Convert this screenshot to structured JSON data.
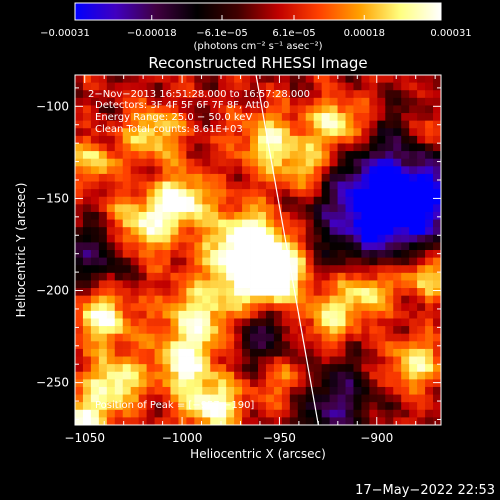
{
  "chart_data": {
    "type": "heatmap",
    "title": "Reconstructed RHESSI Image",
    "xlabel": "Heliocentric X (arcsec)",
    "ylabel": "Heliocentric Y (arcsec)",
    "xlim": [
      -1055,
      -867
    ],
    "ylim": [
      -273,
      -83
    ],
    "x_ticks": [
      -1050,
      -1000,
      -950,
      -900
    ],
    "x_tick_labels": [
      "−1050",
      "−1000",
      "−950",
      "−900"
    ],
    "y_ticks": [
      -100,
      -150,
      -200,
      -250
    ],
    "y_tick_labels": [
      "−100",
      "−150",
      "−200",
      "−250"
    ],
    "colorbar": {
      "min": -0.00031,
      "max": 0.00031,
      "ticks": [
        -0.00031,
        -0.00018,
        -6.1e-05,
        6.1e-05,
        0.00018,
        0.00031
      ],
      "tick_labels": [
        "−0.00031",
        "−0.00018",
        "−6.1e−05",
        "6.1e−05",
        "0.00018",
        "0.00031"
      ],
      "unit_text": "(photons cm⁻² s⁻¹ asec⁻²)",
      "colors": [
        "#0000ff",
        "#4000c0",
        "#400040",
        "#000000",
        "#400000",
        "#c00000",
        "#ff4000",
        "#ffa000",
        "#ffff80",
        "#ffffff"
      ]
    },
    "annotations": [
      "2−Nov−2013 16:51:28.000 to 16:57:28.000",
      "Detectors: 3F 4F 5F 6F 7F 8F, Att 0",
      "Energy Range: 25.0 − 50.0 keV",
      "Clean     Total counts: 8.61E+03"
    ],
    "peak_label": "Position of Peak = [−957,−190]",
    "peak": [
      -957,
      -190
    ],
    "limb_line": [
      [
        -962,
        -83
      ],
      [
        -930,
        -273
      ]
    ],
    "hotspots": [
      {
        "x": -957,
        "y": -190,
        "s": 12,
        "a": 1.0
      },
      {
        "x": -968,
        "y": -175,
        "s": 14,
        "a": 0.6
      },
      {
        "x": -1000,
        "y": -150,
        "s": 10,
        "a": 0.55
      },
      {
        "x": -1020,
        "y": -165,
        "s": 12,
        "a": 0.5
      },
      {
        "x": -1015,
        "y": -115,
        "s": 10,
        "a": 0.45
      },
      {
        "x": -955,
        "y": -120,
        "s": 12,
        "a": 0.45
      },
      {
        "x": -920,
        "y": -110,
        "s": 10,
        "a": 0.55
      },
      {
        "x": -935,
        "y": -135,
        "s": 10,
        "a": 0.4
      },
      {
        "x": -1040,
        "y": -215,
        "s": 10,
        "a": 0.55
      },
      {
        "x": -990,
        "y": -215,
        "s": 14,
        "a": 0.5
      },
      {
        "x": -1035,
        "y": -250,
        "s": 10,
        "a": 0.55
      },
      {
        "x": -1000,
        "y": -240,
        "s": 10,
        "a": 0.5
      },
      {
        "x": -985,
        "y": -262,
        "s": 10,
        "a": 0.6
      },
      {
        "x": -1048,
        "y": -270,
        "s": 8,
        "a": 0.55
      },
      {
        "x": -945,
        "y": -250,
        "s": 12,
        "a": 0.35
      },
      {
        "x": -905,
        "y": -200,
        "s": 10,
        "a": 0.5
      },
      {
        "x": -875,
        "y": -190,
        "s": 10,
        "a": 0.55
      },
      {
        "x": -880,
        "y": -240,
        "s": 10,
        "a": 0.45
      },
      {
        "x": -870,
        "y": -115,
        "s": 8,
        "a": 0.4
      },
      {
        "x": -925,
        "y": -215,
        "s": 10,
        "a": 0.4
      },
      {
        "x": -1045,
        "y": -130,
        "s": 8,
        "a": 0.4
      }
    ],
    "coldspots": [
      {
        "x": -880,
        "y": -150,
        "s": 25,
        "a": 0.6
      },
      {
        "x": -905,
        "y": -155,
        "s": 20,
        "a": 0.5
      },
      {
        "x": -1045,
        "y": -180,
        "s": 12,
        "a": 0.4
      },
      {
        "x": -925,
        "y": -260,
        "s": 15,
        "a": 0.5
      },
      {
        "x": -960,
        "y": -225,
        "s": 12,
        "a": 0.4
      }
    ]
  },
  "footer": {
    "timestamp": "17−May−2022 22:53"
  }
}
